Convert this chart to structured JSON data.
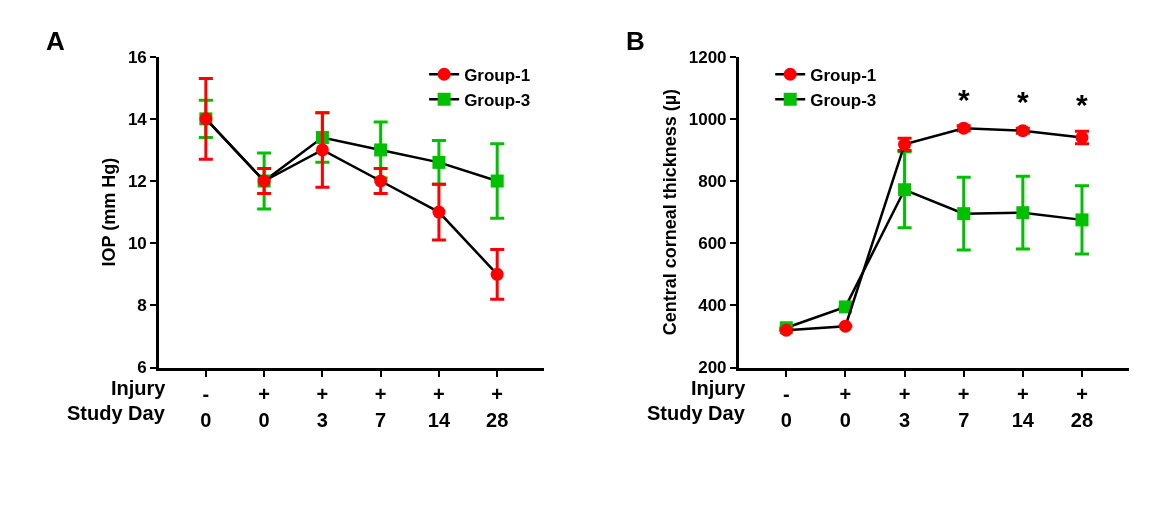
{
  "chart_data": [
    {
      "type": "line",
      "title": "A",
      "ylabel": "IOP (mm Hg)",
      "categories": [
        "-\n0",
        "+\n0",
        "+\n3",
        "+\n7",
        "+\n14",
        "+\n28"
      ],
      "series": [
        {
          "name": "Group-1",
          "color": "#ff0000",
          "marker": "circle",
          "values": [
            14,
            12,
            13,
            12,
            11,
            9
          ],
          "errors": [
            1.3,
            0.4,
            1.2,
            0.4,
            0.9,
            0.8
          ]
        },
        {
          "name": "Group-3",
          "color": "#00c000",
          "marker": "square",
          "values": [
            14,
            12,
            13.4,
            13,
            12.6,
            12
          ],
          "errors": [
            0.6,
            0.9,
            0.8,
            0.9,
            0.7,
            1.2
          ]
        }
      ],
      "ylim": [
        6,
        16
      ],
      "yticks": [
        6,
        8,
        10,
        12,
        14,
        16
      ],
      "legend": "top right",
      "annotations": [
        "Injury",
        "Study Day"
      ]
    },
    {
      "type": "line",
      "title": "B",
      "ylabel": "Central corneal thickness (µ)",
      "categories": [
        "-\n0",
        "+\n0",
        "+\n3",
        "+\n7",
        "+\n14",
        "+\n28"
      ],
      "series": [
        {
          "name": "Group-1",
          "color": "#ff0000",
          "marker": "circle",
          "values": [
            320,
            333,
            918,
            970,
            962,
            940
          ],
          "errors": [
            null,
            null,
            20,
            8,
            8,
            20
          ]
        },
        {
          "name": "Group-3",
          "color": "#00c000",
          "marker": "square",
          "values": [
            328,
            395,
            772,
            695,
            698,
            675
          ],
          "errors": [
            null,
            null,
            122,
            117,
            117,
            110
          ]
        }
      ],
      "ylim": [
        200,
        1200
      ],
      "yticks": [
        200,
        400,
        600,
        800,
        1000,
        1200
      ],
      "legend": "top left",
      "annotations": [
        "Injury",
        "Study Day",
        "*",
        "*",
        "*"
      ]
    }
  ]
}
